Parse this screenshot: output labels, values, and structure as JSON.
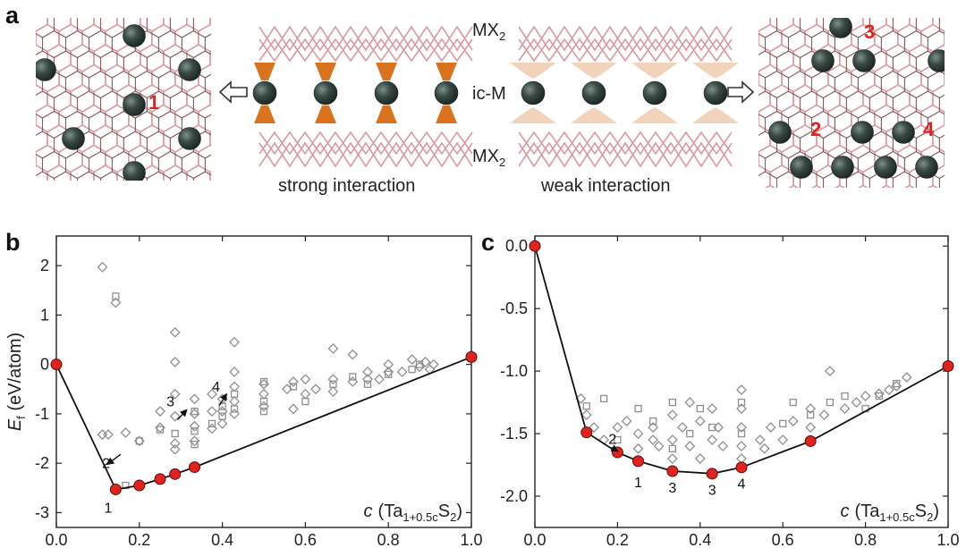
{
  "figure": {
    "panel_a": {
      "letter": "a",
      "labels": {
        "mx2_top": "MX",
        "mx2_top_sub": "2",
        "icm": "ic-M",
        "mx2_bottom": "MX",
        "mx2_bottom_sub": "2",
        "strong": "strong interaction",
        "weak": "weak interaction"
      },
      "site_numbers": [
        "1",
        "2",
        "3",
        "4"
      ],
      "colors": {
        "lattice": "#d99aa0",
        "lattice_dark": "#7a4a4c",
        "atom": "#2e3b37",
        "strong_cone": "#d9731e",
        "weak_cone": "#f2d3bc",
        "highlight": "#e0231f"
      }
    }
  },
  "chart_data": [
    {
      "panel": "b",
      "type": "scatter",
      "xlabel_var": "c",
      "xlabel_formula": "(Ta",
      "xlabel_sub": "1+0.5c",
      "xlabel_s": "S",
      "xlabel_s_sub": "2",
      "xlabel_close": ")",
      "ylabel": "E",
      "ylabel_sub": "f",
      "ylabel_unit": " (eV/atom)",
      "xlim": [
        0.0,
        1.0
      ],
      "ylim": [
        -3.3,
        2.6
      ],
      "xticks": [
        "0.0",
        "0.2",
        "0.4",
        "0.6",
        "0.8",
        "1.0"
      ],
      "yticks": [
        "2",
        "1",
        "0",
        "-1",
        "-2",
        "-3"
      ],
      "hull": {
        "x": [
          0.0,
          0.143,
          0.2,
          0.25,
          0.286,
          0.333,
          1.0
        ],
        "y": [
          0.0,
          -2.53,
          -2.45,
          -2.32,
          -2.22,
          -2.08,
          0.15
        ]
      },
      "candidates_diamond": [
        [
          0.111,
          -1.42
        ],
        [
          0.125,
          -1.42
        ],
        [
          0.111,
          1.97
        ],
        [
          0.143,
          1.25
        ],
        [
          0.167,
          -1.38
        ],
        [
          0.2,
          -1.55
        ],
        [
          0.25,
          -1.28
        ],
        [
          0.25,
          -0.95
        ],
        [
          0.286,
          -1.05
        ],
        [
          0.286,
          -0.6
        ],
        [
          0.286,
          0.65
        ],
        [
          0.286,
          0.05
        ],
        [
          0.286,
          -1.6
        ],
        [
          0.286,
          -1.72
        ],
        [
          0.333,
          -1.25
        ],
        [
          0.333,
          -1.55
        ],
        [
          0.333,
          -1.0
        ],
        [
          0.333,
          -0.7
        ],
        [
          0.375,
          -1.3
        ],
        [
          0.375,
          -0.95
        ],
        [
          0.375,
          -0.6
        ],
        [
          0.4,
          -0.95
        ],
        [
          0.4,
          -1.2
        ],
        [
          0.4,
          -0.7
        ],
        [
          0.429,
          0.45
        ],
        [
          0.429,
          -0.15
        ],
        [
          0.429,
          -0.45
        ],
        [
          0.429,
          -0.75
        ],
        [
          0.429,
          -1.0
        ],
        [
          0.5,
          -0.4
        ],
        [
          0.5,
          -0.6
        ],
        [
          0.5,
          -0.85
        ],
        [
          0.556,
          -0.5
        ],
        [
          0.571,
          -0.35
        ],
        [
          0.571,
          -0.9
        ],
        [
          0.6,
          -0.3
        ],
        [
          0.6,
          -0.6
        ],
        [
          0.625,
          -0.5
        ],
        [
          0.667,
          0.32
        ],
        [
          0.667,
          -0.3
        ],
        [
          0.667,
          -0.55
        ],
        [
          0.714,
          0.2
        ],
        [
          0.714,
          -0.35
        ],
        [
          0.75,
          -0.15
        ],
        [
          0.75,
          -0.3
        ],
        [
          0.778,
          -0.3
        ],
        [
          0.8,
          -0.15
        ],
        [
          0.8,
          0.0
        ],
        [
          0.833,
          -0.15
        ],
        [
          0.857,
          0.1
        ],
        [
          0.875,
          -0.05
        ],
        [
          0.889,
          0.05
        ],
        [
          0.9,
          -0.1
        ],
        [
          0.909,
          0.0
        ]
      ],
      "candidates_square": [
        [
          0.143,
          1.38
        ],
        [
          0.167,
          -2.45
        ],
        [
          0.2,
          -1.55
        ],
        [
          0.25,
          -1.32
        ],
        [
          0.286,
          -1.4
        ],
        [
          0.333,
          -1.35
        ],
        [
          0.333,
          -1.62
        ],
        [
          0.333,
          -0.95
        ],
        [
          0.375,
          -1.2
        ],
        [
          0.4,
          -1.05
        ],
        [
          0.4,
          -0.85
        ],
        [
          0.429,
          -0.6
        ],
        [
          0.429,
          -0.9
        ],
        [
          0.5,
          -0.35
        ],
        [
          0.5,
          -0.75
        ],
        [
          0.5,
          -0.95
        ],
        [
          0.571,
          -0.45
        ],
        [
          0.6,
          -0.75
        ],
        [
          0.667,
          -0.4
        ],
        [
          0.714,
          -0.25
        ],
        [
          0.75,
          -0.4
        ],
        [
          0.8,
          -0.2
        ],
        [
          0.857,
          -0.1
        ],
        [
          0.875,
          0.0
        ]
      ],
      "annotations": [
        {
          "text": "1",
          "x": 0.125,
          "y": -3.0
        },
        {
          "text": "2",
          "x": 0.12,
          "y": -2.1
        },
        {
          "text": "3",
          "x": 0.275,
          "y": -0.85
        },
        {
          "text": "4",
          "x": 0.385,
          "y": -0.55
        }
      ],
      "annotation_arrows": [
        {
          "from": [
            0.155,
            -1.82
          ],
          "to": [
            0.123,
            -2.02
          ]
        },
        {
          "from": [
            0.292,
            -1.12
          ],
          "to": [
            0.314,
            -0.92
          ]
        },
        {
          "from": [
            0.393,
            -0.83
          ],
          "to": [
            0.41,
            -0.6
          ]
        }
      ]
    },
    {
      "panel": "c",
      "type": "scatter",
      "xlabel_var": "c",
      "xlabel_formula": "(Ta",
      "xlabel_sub": "1+0.5c",
      "xlabel_s": "S",
      "xlabel_s_sub": "2",
      "xlabel_close": ")",
      "xlim": [
        0.0,
        1.0
      ],
      "ylim": [
        -2.25,
        0.08
      ],
      "xticks": [
        "0.0",
        "0.2",
        "0.4",
        "0.6",
        "0.8",
        "1.0"
      ],
      "yticks": [
        "0.0",
        "-0.5",
        "-1.0",
        "-1.5",
        "-2.0"
      ],
      "hull": {
        "x": [
          0.0,
          0.125,
          0.2,
          0.25,
          0.333,
          0.429,
          0.5,
          0.667,
          1.0
        ],
        "y": [
          0.0,
          -1.49,
          -1.65,
          -1.72,
          -1.8,
          -1.82,
          -1.77,
          -1.56,
          -0.96
        ]
      },
      "candidates_diamond": [
        [
          0.111,
          -1.22
        ],
        [
          0.125,
          -1.35
        ],
        [
          0.143,
          -1.45
        ],
        [
          0.167,
          -1.55
        ],
        [
          0.2,
          -1.45
        ],
        [
          0.222,
          -1.4
        ],
        [
          0.25,
          -1.62
        ],
        [
          0.25,
          -1.5
        ],
        [
          0.286,
          -1.55
        ],
        [
          0.286,
          -1.45
        ],
        [
          0.3,
          -1.6
        ],
        [
          0.333,
          -1.35
        ],
        [
          0.333,
          -1.55
        ],
        [
          0.333,
          -1.7
        ],
        [
          0.357,
          -1.45
        ],
        [
          0.375,
          -1.25
        ],
        [
          0.375,
          -1.6
        ],
        [
          0.4,
          -1.4
        ],
        [
          0.4,
          -1.7
        ],
        [
          0.429,
          -1.3
        ],
        [
          0.429,
          -1.55
        ],
        [
          0.444,
          -1.45
        ],
        [
          0.455,
          -1.6
        ],
        [
          0.5,
          -1.15
        ],
        [
          0.5,
          -1.3
        ],
        [
          0.5,
          -1.45
        ],
        [
          0.5,
          -1.6
        ],
        [
          0.5,
          -1.7
        ],
        [
          0.545,
          -1.55
        ],
        [
          0.556,
          -1.62
        ],
        [
          0.571,
          -1.45
        ],
        [
          0.6,
          -1.55
        ],
        [
          0.625,
          -1.4
        ],
        [
          0.667,
          -1.3
        ],
        [
          0.667,
          -1.45
        ],
        [
          0.7,
          -1.35
        ],
        [
          0.714,
          -1.0
        ],
        [
          0.75,
          -1.3
        ],
        [
          0.778,
          -1.25
        ],
        [
          0.8,
          -1.2
        ],
        [
          0.833,
          -1.18
        ],
        [
          0.857,
          -1.15
        ],
        [
          0.875,
          -1.12
        ],
        [
          0.9,
          -1.05
        ]
      ],
      "candidates_square": [
        [
          0.125,
          -1.28
        ],
        [
          0.167,
          -1.22
        ],
        [
          0.2,
          -1.55
        ],
        [
          0.25,
          -1.3
        ],
        [
          0.286,
          -1.4
        ],
        [
          0.333,
          -1.25
        ],
        [
          0.333,
          -1.62
        ],
        [
          0.375,
          -1.5
        ],
        [
          0.4,
          -1.3
        ],
        [
          0.429,
          -1.45
        ],
        [
          0.5,
          -1.25
        ],
        [
          0.5,
          -1.5
        ],
        [
          0.6,
          -1.42
        ],
        [
          0.625,
          -1.25
        ],
        [
          0.667,
          -1.35
        ],
        [
          0.714,
          -1.25
        ],
        [
          0.75,
          -1.2
        ],
        [
          0.8,
          -1.3
        ],
        [
          0.833,
          -1.2
        ],
        [
          0.875,
          -1.1
        ]
      ],
      "annotations": [
        {
          "text": "2",
          "x": 0.188,
          "y": -1.58
        },
        {
          "text": "1",
          "x": 0.25,
          "y": -1.93
        },
        {
          "text": "3",
          "x": 0.333,
          "y": -1.97
        },
        {
          "text": "3",
          "x": 0.429,
          "y": -1.99
        },
        {
          "text": "4",
          "x": 0.5,
          "y": -1.94
        }
      ],
      "annotation_arrows": [
        {
          "from": [
            0.185,
            -1.61
          ],
          "to": [
            0.2,
            -1.64
          ]
        }
      ]
    }
  ]
}
